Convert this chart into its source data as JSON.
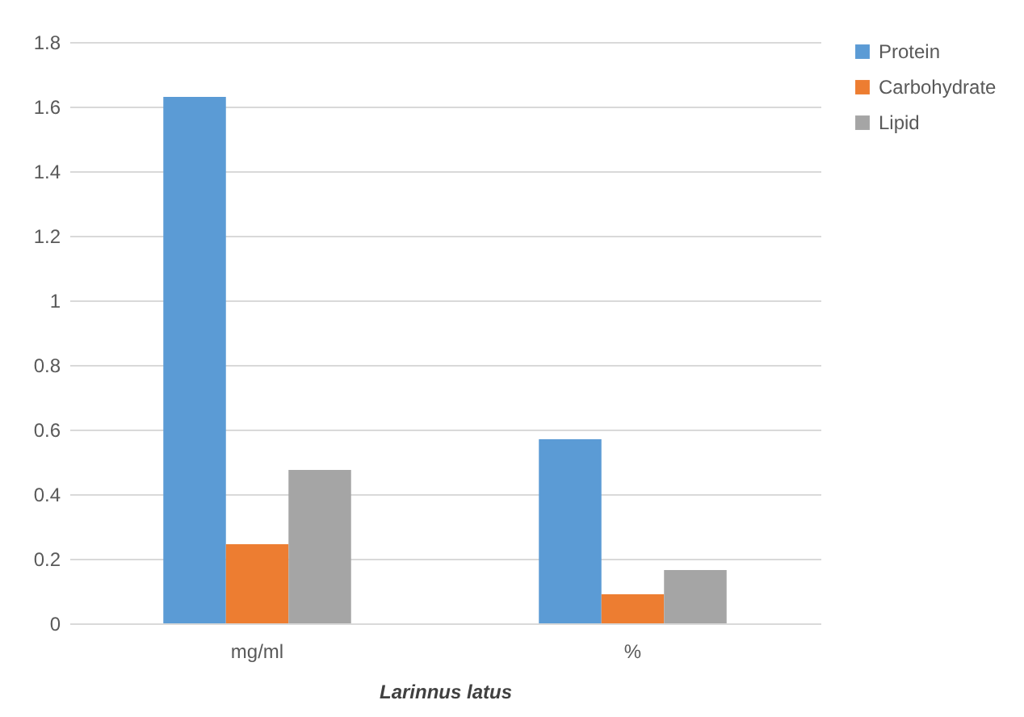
{
  "chart_data": {
    "type": "bar",
    "xlabel": "Larinnus latus",
    "categories": [
      "mg/ml",
      "%"
    ],
    "series": [
      {
        "name": "Protein",
        "color": "#5b9bd5",
        "values": [
          1.63,
          0.57
        ]
      },
      {
        "name": "Carbohydrate",
        "color": "#ed7d31",
        "values": [
          0.245,
          0.09
        ]
      },
      {
        "name": "Lipid",
        "color": "#a5a5a5",
        "values": [
          0.475,
          0.165
        ]
      }
    ],
    "ylim": [
      0,
      1.8
    ],
    "yticks": [
      0,
      0.2,
      0.4,
      0.6,
      0.8,
      1,
      1.2,
      1.4,
      1.6,
      1.8
    ],
    "grid": true,
    "legend": "right"
  }
}
